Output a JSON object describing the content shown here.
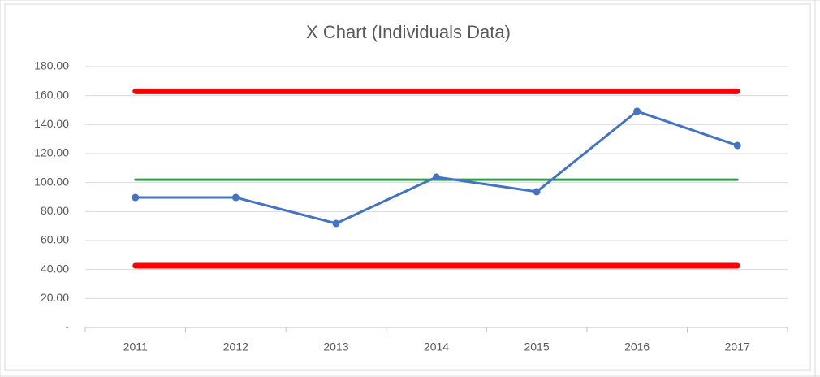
{
  "chart_data": {
    "type": "line",
    "title": "X Chart (Individuals Data)",
    "categories": [
      "2011",
      "2012",
      "2013",
      "2014",
      "2015",
      "2016",
      "2017"
    ],
    "series": [
      {
        "color": "#ff0000",
        "values": [
          163,
          163,
          163,
          163,
          163,
          163,
          163
        ]
      },
      {
        "color": "#ff0000",
        "values": [
          42.6,
          42.6,
          42.6,
          42.6,
          42.6,
          42.6,
          42.6
        ]
      },
      {
        "color": "#2ea043",
        "values": [
          102,
          102,
          102,
          102,
          102,
          102,
          102
        ]
      },
      {
        "color": "#4472c4",
        "values": [
          89.7,
          89.7,
          71.8,
          103.8,
          93.7,
          149.2,
          125.6
        ],
        "markers": true
      }
    ],
    "ylim": [
      0,
      180
    ],
    "yticks": [
      {
        "value": 0,
        "label": "-"
      },
      {
        "value": 20,
        "label": "20.00"
      },
      {
        "value": 40,
        "label": "40.00"
      },
      {
        "value": 60,
        "label": "60.00"
      },
      {
        "value": 80,
        "label": "80.00"
      },
      {
        "value": 100,
        "label": "100.00"
      },
      {
        "value": 120,
        "label": "120.00"
      },
      {
        "value": 140,
        "label": "140.00"
      },
      {
        "value": 160,
        "label": "160.00"
      },
      {
        "value": 180,
        "label": "180.00"
      }
    ],
    "grid": true
  }
}
